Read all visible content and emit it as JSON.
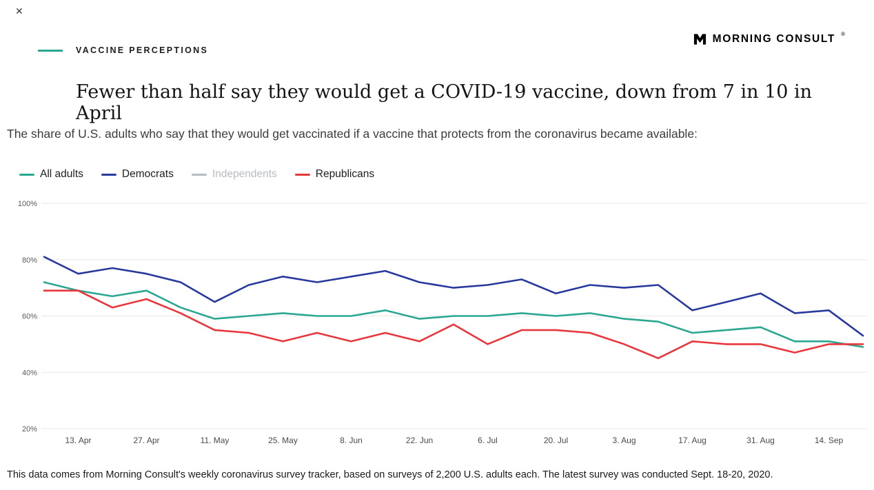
{
  "icons": {
    "close": "✕"
  },
  "kicker": "VACCINE PERCEPTIONS",
  "logo": {
    "text": "MORNING CONSULT",
    "reg": "®"
  },
  "title": "Fewer than half say they would get a COVID-19 vaccine, down from 7 in 10 in April",
  "subtitle": "The share of U.S. adults who say that they would get vaccinated if a vaccine that protects from the coronavirus became available:",
  "footer": "This data comes from Morning Consult's weekly coronavirus survey tracker, based on surveys of 2,200 U.S. adults each. The latest survey was conducted Sept. 18-20, 2020.",
  "colors": {
    "accent_teal": "#2aa791",
    "democrat_blue": "#27399c",
    "independent_gray": "#b6bcc2",
    "republican_red": "#e8363d",
    "gridline": "#e7e7e7"
  },
  "chart_data": {
    "type": "line",
    "x": [
      "6. Apr",
      "13. Apr",
      "20. Apr",
      "27. Apr",
      "4. May",
      "11. May",
      "18. May",
      "25. May",
      "1. Jun",
      "8. Jun",
      "15. Jun",
      "22. Jun",
      "29. Jun",
      "6. Jul",
      "13. Jul",
      "20. Jul",
      "27. Jul",
      "3. Aug",
      "10. Aug",
      "17. Aug",
      "24. Aug",
      "31. Aug",
      "7. Sep",
      "14. Sep",
      "20. Sep"
    ],
    "x_tick_labels": [
      "13. Apr",
      "27. Apr",
      "11. May",
      "25. May",
      "8. Jun",
      "22. Jun",
      "6. Jul",
      "20. Jul",
      "3. Aug",
      "17. Aug",
      "31. Aug",
      "14. Sep"
    ],
    "ylim": [
      20,
      100
    ],
    "y_ticks": [
      20,
      40,
      60,
      80,
      100
    ],
    "grid": true,
    "legend_position": "top",
    "series": [
      {
        "name": "All adults",
        "color": "#2aa791",
        "hidden": false,
        "values": [
          72,
          69,
          67,
          69,
          63,
          59,
          60,
          61,
          60,
          60,
          62,
          59,
          60,
          60,
          61,
          60,
          61,
          59,
          58,
          54,
          55,
          56,
          51,
          51,
          49
        ]
      },
      {
        "name": "Democrats",
        "color": "#27399c",
        "hidden": false,
        "values": [
          81,
          75,
          77,
          75,
          72,
          65,
          71,
          74,
          72,
          74,
          76,
          72,
          70,
          71,
          73,
          68,
          71,
          70,
          71,
          62,
          65,
          68,
          61,
          62,
          53
        ]
      },
      {
        "name": "Independents",
        "color": "#b6bcc2",
        "hidden": true,
        "values": null
      },
      {
        "name": "Republicans",
        "color": "#e8363d",
        "hidden": false,
        "values": [
          69,
          69,
          63,
          66,
          61,
          55,
          54,
          51,
          54,
          51,
          54,
          51,
          57,
          50,
          55,
          55,
          54,
          50,
          45,
          51,
          50,
          50,
          47,
          50,
          50
        ]
      }
    ]
  }
}
